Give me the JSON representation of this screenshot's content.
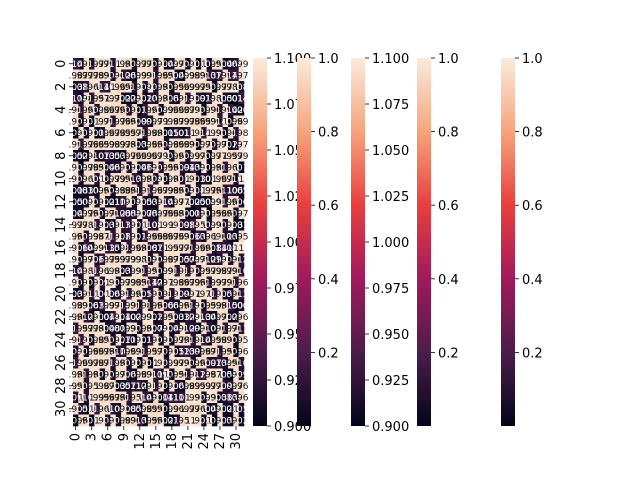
{
  "chart_data": {
    "type": "heatmap",
    "title": "",
    "xlabel": "",
    "ylabel": "",
    "rows": 32,
    "cols": 32,
    "x_tick_labels": [
      "0",
      "3",
      "6",
      "9",
      "12",
      "15",
      "18",
      "21",
      "24",
      "27",
      "30"
    ],
    "y_tick_labels": [
      "0",
      "2",
      "4",
      "6",
      "8",
      "10",
      "12",
      "14",
      "16",
      "18",
      "20",
      "22",
      "24",
      "26",
      "28",
      "30"
    ],
    "annotated": true,
    "value_range": [
      0.0,
      1.0
    ],
    "cell_color_description": "mostly light (near 1.0) with dark patches (near 0); cells are overprinted with cramped white value annotations",
    "colormap": "rocket",
    "colorbars": [
      {
        "range": [
          0.9,
          1.1
        ],
        "ticks": [
          "0.900",
          "0.925",
          "0.950",
          "0.975",
          "1.000",
          "1.025",
          "1.050",
          "1.075",
          "1.100"
        ]
      },
      {
        "range": [
          0.0,
          1.0
        ],
        "ticks": [
          "0.2",
          "0.4",
          "0.6",
          "0.8",
          "1.0"
        ]
      },
      {
        "range": [
          0.9,
          1.1
        ],
        "ticks": [
          "0.900",
          "0.925",
          "0.950",
          "0.975",
          "1.000",
          "1.025",
          "1.050",
          "1.075",
          "1.100"
        ]
      },
      {
        "range": [
          0.0,
          1.0
        ],
        "ticks": [
          "0.2",
          "0.4",
          "0.6",
          "0.8",
          "1.0"
        ]
      },
      {
        "range": [
          0.0,
          1.0
        ],
        "ticks": [
          "0.2",
          "0.4",
          "0.6",
          "0.8",
          "1.0"
        ]
      }
    ]
  }
}
